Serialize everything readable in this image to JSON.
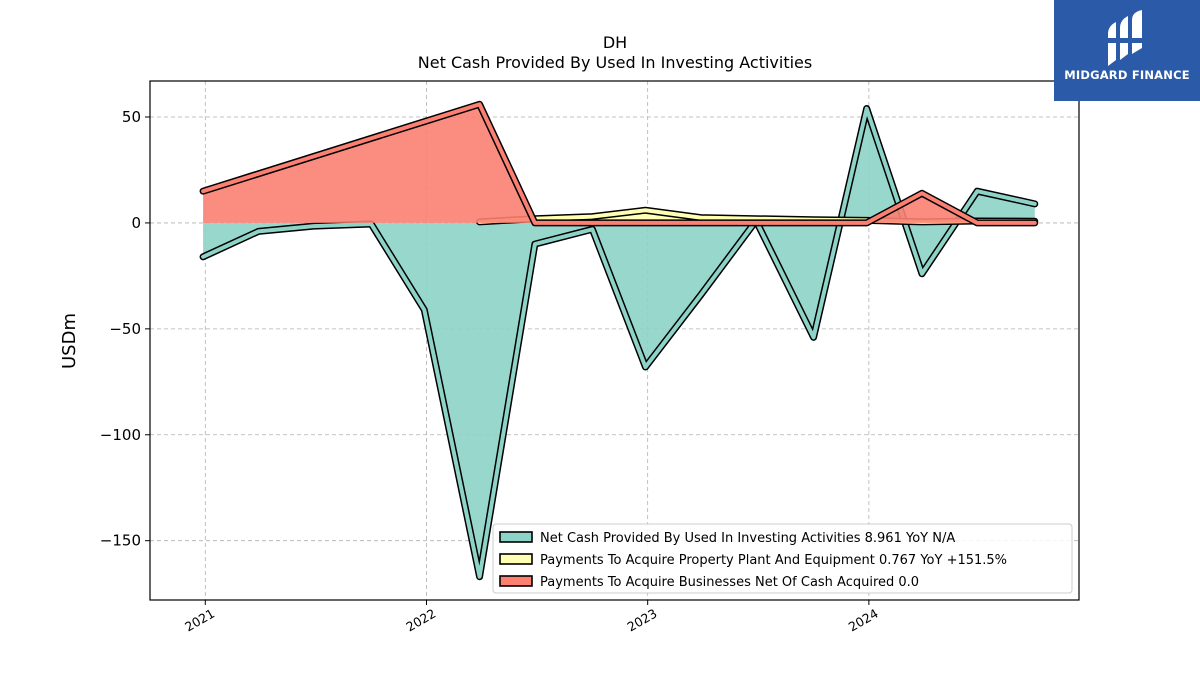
{
  "chart_data": {
    "type": "line",
    "title": "DH",
    "subtitle": "Net Cash Provided By Used In Investing Activities",
    "ylabel": "USDm",
    "xlabel": "",
    "ylim": [
      -178,
      67
    ],
    "xlim": [
      2020.75,
      2024.95
    ],
    "yticks": [
      50,
      0,
      -50,
      -100,
      -150
    ],
    "ytick_labels": [
      "50",
      "0",
      "−50",
      "−100",
      "−150"
    ],
    "xticks": [
      2021,
      2022,
      2023,
      2024
    ],
    "xtick_labels": [
      "2021",
      "2022",
      "2023",
      "2024"
    ],
    "grid": true,
    "legend_position": "bottom-right",
    "series": [
      {
        "name": "Net Cash Provided By Used In Investing Activities",
        "legend_label": "Net Cash Provided By Used In Investing Activities  8.961 YoY N/A",
        "color": "#8dd3c7",
        "x": [
          2020.99,
          2021.24,
          2021.49,
          2021.75,
          2021.99,
          2022.24,
          2022.49,
          2022.75,
          2022.99,
          2023.24,
          2023.49,
          2023.75,
          2023.99,
          2024.24,
          2024.49,
          2024.75
        ],
        "y": [
          -16,
          -4,
          -1.5,
          -0.5,
          -41,
          -167,
          -10,
          -3,
          -68,
          -34,
          1,
          -54,
          54,
          -24,
          15,
          9
        ]
      },
      {
        "name": "Payments To Acquire Property Plant And Equipment",
        "legend_label": "Payments To Acquire Property Plant And Equipment  0.767 YoY +151.5%",
        "color": "#ffffb3",
        "x": [
          2022.24,
          2022.49,
          2022.75,
          2022.99,
          2023.24,
          2023.49,
          2023.75,
          2023.99,
          2024.24,
          2024.49,
          2024.75
        ],
        "y": [
          0.5,
          2,
          3,
          6,
          2.5,
          2,
          1.5,
          1.2,
          0.5,
          0.9,
          0.8
        ]
      },
      {
        "name": "Payments To Acquire Businesses Net Of Cash Acquired",
        "legend_label": "Payments To Acquire Businesses Net Of Cash Acquired  0.0",
        "color": "#fb8072",
        "x": [
          2020.99,
          2022.24,
          2022.49,
          2022.75,
          2022.99,
          2023.24,
          2023.49,
          2023.75,
          2023.99,
          2024.24,
          2024.49,
          2024.75
        ],
        "y": [
          15,
          56,
          0,
          0,
          0,
          0,
          0,
          0,
          0,
          14,
          0,
          0
        ]
      }
    ]
  },
  "logo": {
    "text": "MIDGARD FINANCE",
    "color": "#2b5aa8"
  }
}
